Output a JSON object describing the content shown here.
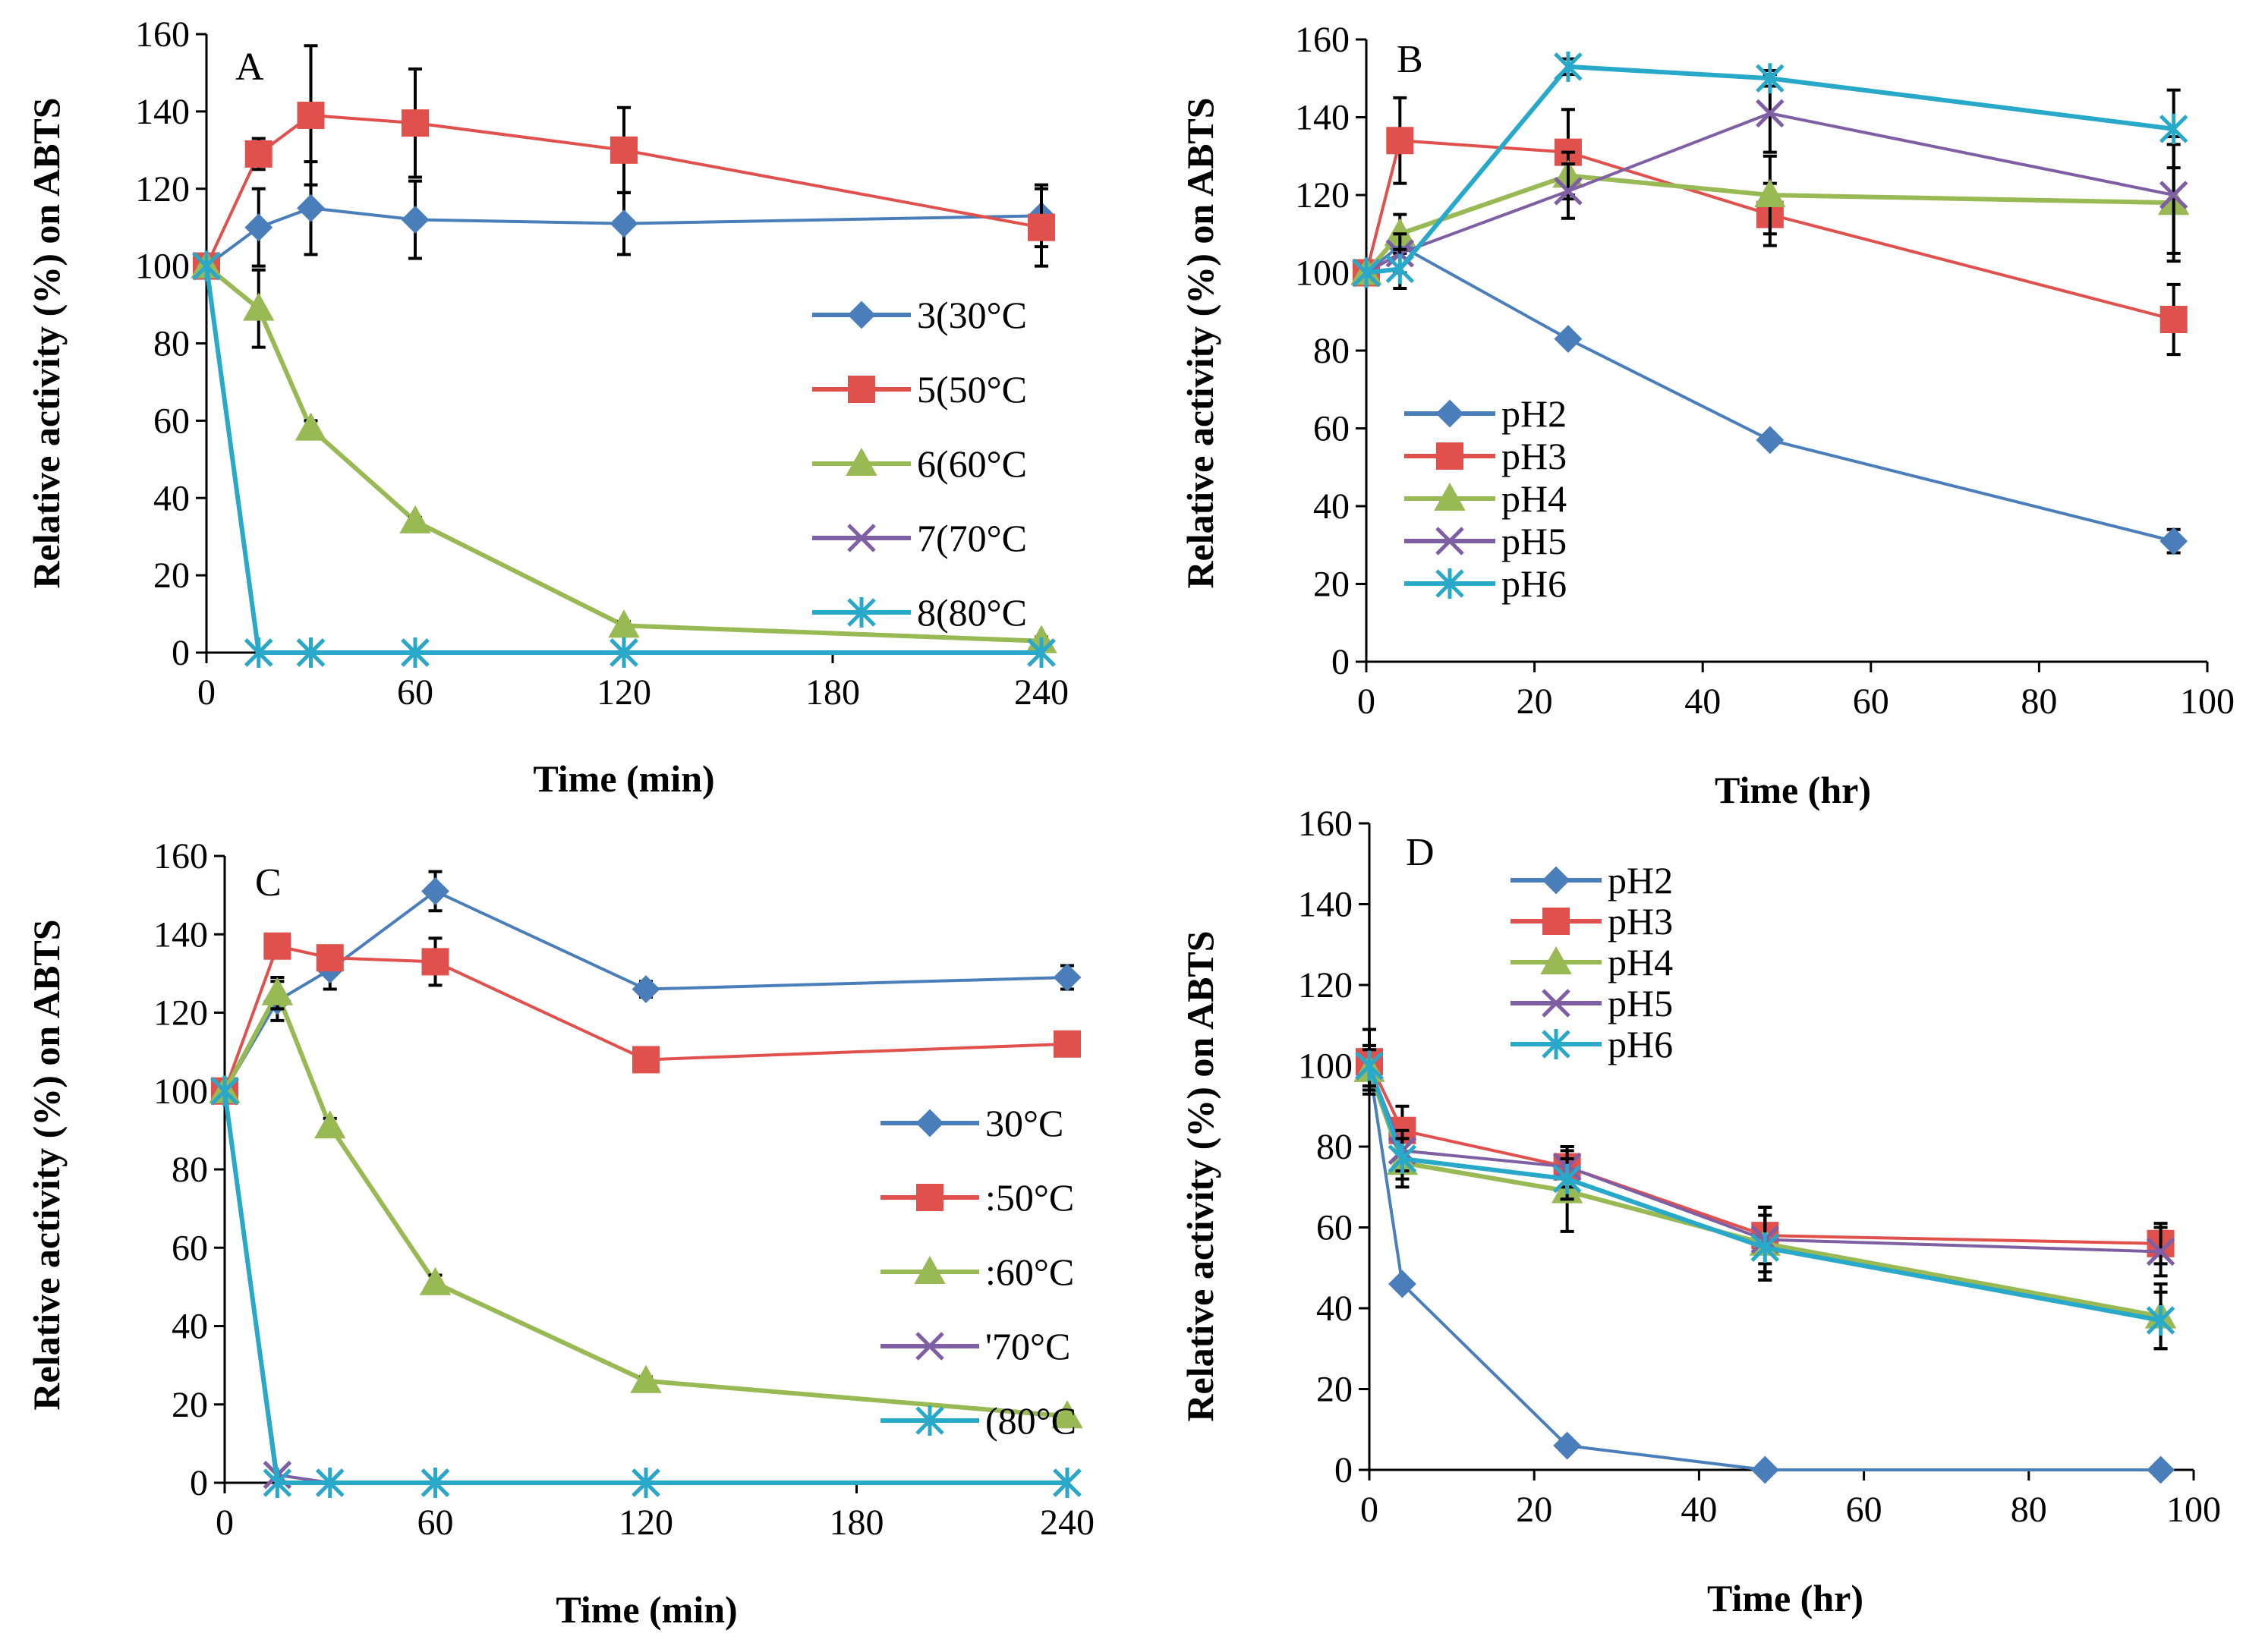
{
  "chart_data": [
    {
      "type": "line",
      "panel": "A",
      "xlabel": "Time (min)",
      "ylabel": "Relative activity (%) on ABTS",
      "xlim": [
        0,
        240
      ],
      "ylim": [
        0,
        160
      ],
      "xticks": [
        0,
        60,
        120,
        180,
        240
      ],
      "yticks": [
        0,
        20,
        40,
        60,
        80,
        100,
        120,
        140,
        160
      ],
      "legend_position": "right",
      "series": [
        {
          "name": "3(30°C",
          "color": "#4A7EBB",
          "marker": "diamond",
          "x": [
            0,
            15,
            30,
            60,
            120,
            240
          ],
          "y": [
            100,
            110,
            115,
            112,
            111,
            113
          ],
          "err": [
            0,
            10,
            12,
            10,
            8,
            8
          ]
        },
        {
          "name": "5(50°C",
          "color": "#E0504D",
          "marker": "square",
          "x": [
            0,
            15,
            30,
            60,
            120,
            240
          ],
          "y": [
            100,
            129,
            139,
            137,
            130,
            110
          ],
          "err": [
            0,
            4,
            18,
            14,
            11,
            10
          ]
        },
        {
          "name": "6(60°C",
          "color": "#98B954",
          "marker": "triangle",
          "x": [
            0,
            15,
            30,
            60,
            120,
            240
          ],
          "y": [
            100,
            89,
            58,
            34,
            7,
            3
          ],
          "err": [
            0,
            10,
            2,
            1,
            1,
            1
          ]
        },
        {
          "name": "7(70°C",
          "color": "#7F5FA3",
          "marker": "x",
          "x": [
            0,
            15,
            30,
            60,
            120,
            240
          ],
          "y": [
            100,
            0,
            0,
            0,
            0,
            0
          ],
          "err": [
            0,
            0,
            0,
            0,
            0,
            0
          ]
        },
        {
          "name": "8(80°C",
          "color": "#29A9C9",
          "marker": "star",
          "x": [
            0,
            15,
            30,
            60,
            120,
            240
          ],
          "y": [
            100,
            0,
            0,
            0,
            0,
            0
          ],
          "err": [
            0,
            0,
            0,
            0,
            0,
            0
          ]
        }
      ]
    },
    {
      "type": "line",
      "panel": "B",
      "xlabel": "Time (hr)",
      "ylabel": "Relative activity (%) on ABTS",
      "xlim": [
        0,
        100
      ],
      "ylim": [
        0,
        160
      ],
      "xticks": [
        0,
        20,
        40,
        60,
        80,
        100
      ],
      "yticks": [
        0,
        20,
        40,
        60,
        80,
        100,
        120,
        140,
        160
      ],
      "legend_position": "bottom-left",
      "series": [
        {
          "name": "pH2",
          "color": "#4A7EBB",
          "marker": "diamond",
          "x": [
            0,
            4,
            24,
            48,
            96
          ],
          "y": [
            100,
            107,
            83,
            57,
            31
          ],
          "err": [
            0,
            0,
            0,
            0,
            3
          ]
        },
        {
          "name": "pH3",
          "color": "#E0504D",
          "marker": "square",
          "x": [
            0,
            4,
            24,
            48,
            96
          ],
          "y": [
            100,
            134,
            131,
            115,
            88
          ],
          "err": [
            0,
            11,
            11,
            8,
            9
          ]
        },
        {
          "name": "pH4",
          "color": "#98B954",
          "marker": "triangle",
          "x": [
            0,
            4,
            24,
            48,
            96
          ],
          "y": [
            100,
            110,
            125,
            120,
            118
          ],
          "err": [
            0,
            5,
            6,
            10,
            15
          ]
        },
        {
          "name": "pH5",
          "color": "#7F5FA3",
          "marker": "x",
          "x": [
            0,
            4,
            24,
            48,
            96
          ],
          "y": [
            100,
            105,
            121,
            141,
            120
          ],
          "err": [
            0,
            5,
            7,
            10,
            15
          ]
        },
        {
          "name": "pH6",
          "color": "#29A9C9",
          "marker": "star",
          "x": [
            0,
            4,
            24,
            48,
            96
          ],
          "y": [
            100,
            101,
            153,
            150,
            137
          ],
          "err": [
            0,
            5,
            2,
            2,
            10
          ]
        }
      ]
    },
    {
      "type": "line",
      "panel": "C",
      "xlabel": "Time (min)",
      "ylabel": "Relative activity (%) on ABTS",
      "xlim": [
        0,
        240
      ],
      "ylim": [
        0,
        160
      ],
      "xticks": [
        0,
        60,
        120,
        180,
        240
      ],
      "yticks": [
        0,
        20,
        40,
        60,
        80,
        100,
        120,
        140,
        160
      ],
      "legend_position": "right",
      "series": [
        {
          "name": "30°C",
          "color": "#4A7EBB",
          "marker": "diamond",
          "x": [
            0,
            15,
            30,
            60,
            120,
            240
          ],
          "y": [
            100,
            123,
            131,
            151,
            126,
            129
          ],
          "err": [
            0,
            5,
            5,
            5,
            2,
            3
          ]
        },
        {
          "name": ":50°C",
          "color": "#E0504D",
          "marker": "square",
          "x": [
            0,
            15,
            30,
            60,
            120,
            240
          ],
          "y": [
            100,
            137,
            134,
            133,
            108,
            112
          ],
          "err": [
            0,
            2,
            3,
            6,
            2,
            2
          ]
        },
        {
          "name": ":60°C",
          "color": "#98B954",
          "marker": "triangle",
          "x": [
            0,
            15,
            30,
            60,
            120,
            240
          ],
          "y": [
            100,
            125,
            91,
            51,
            26,
            17
          ],
          "err": [
            0,
            4,
            2,
            2,
            1,
            1
          ]
        },
        {
          "name": "'70°C",
          "color": "#7F5FA3",
          "marker": "x",
          "x": [
            0,
            15,
            30,
            60,
            120,
            240
          ],
          "y": [
            100,
            2,
            0,
            0,
            0,
            0
          ],
          "err": [
            0,
            0,
            0,
            0,
            0,
            0
          ]
        },
        {
          "name": "(80°C",
          "color": "#29A9C9",
          "marker": "star",
          "x": [
            0,
            15,
            30,
            60,
            120,
            240
          ],
          "y": [
            100,
            0,
            0,
            0,
            0,
            0
          ],
          "err": [
            0,
            0,
            0,
            0,
            0,
            0
          ]
        }
      ]
    },
    {
      "type": "line",
      "panel": "D",
      "xlabel": "Time (hr)",
      "ylabel": "Relative activity (%) on ABTS",
      "xlim": [
        0,
        100
      ],
      "ylim": [
        0,
        160
      ],
      "xticks": [
        0,
        20,
        40,
        60,
        80,
        100
      ],
      "yticks": [
        0,
        20,
        40,
        60,
        80,
        100,
        120,
        140,
        160
      ],
      "legend_position": "top-left",
      "series": [
        {
          "name": "pH2",
          "color": "#4A7EBB",
          "marker": "diamond",
          "x": [
            0,
            4,
            24,
            48,
            96
          ],
          "y": [
            100,
            46,
            6,
            0,
            0
          ],
          "err": [
            0,
            0,
            0,
            0,
            0
          ]
        },
        {
          "name": "pH3",
          "color": "#E0504D",
          "marker": "square",
          "x": [
            0,
            4,
            24,
            48,
            96
          ],
          "y": [
            101,
            84,
            75,
            58,
            56
          ],
          "err": [
            8,
            6,
            5,
            7,
            5
          ]
        },
        {
          "name": "pH4",
          "color": "#98B954",
          "marker": "triangle",
          "x": [
            0,
            4,
            24,
            48,
            96
          ],
          "y": [
            99,
            76,
            69,
            56,
            38
          ],
          "err": [
            5,
            6,
            10,
            9,
            8
          ]
        },
        {
          "name": "pH5",
          "color": "#7F5FA3",
          "marker": "x",
          "x": [
            0,
            4,
            24,
            48,
            96
          ],
          "y": [
            100,
            79,
            75,
            57,
            54
          ],
          "err": [
            5,
            5,
            5,
            8,
            6
          ]
        },
        {
          "name": "pH6",
          "color": "#29A9C9",
          "marker": "star",
          "x": [
            0,
            4,
            24,
            48,
            96
          ],
          "y": [
            100,
            77,
            72,
            55,
            37
          ],
          "err": [
            5,
            5,
            5,
            8,
            7
          ]
        }
      ]
    }
  ]
}
